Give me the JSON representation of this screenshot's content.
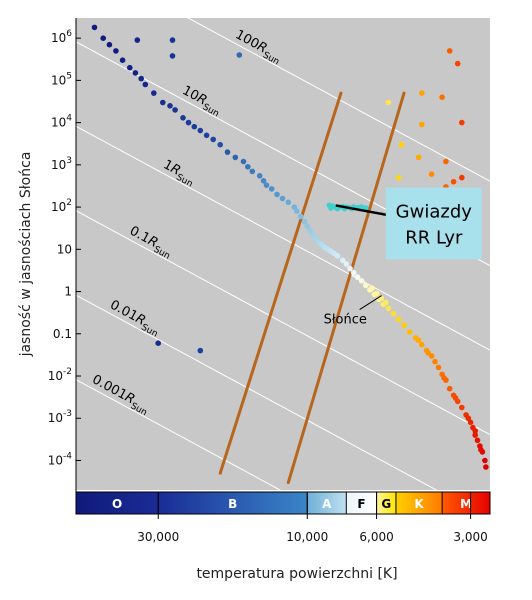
{
  "chart_data": {
    "type": "scatter",
    "title": "",
    "xlabel": "temperatura powierzchni [K]",
    "ylabel": "jasność w jasnościach Słońca",
    "x_scale": "log",
    "x_reversed": true,
    "xlim": [
      55000,
      2600
    ],
    "y_scale": "log",
    "ylim": [
      2e-05,
      3000000
    ],
    "grid": false,
    "background": "#c8c8c8",
    "x_ticks": [
      {
        "value": 30000,
        "label": "30,000"
      },
      {
        "value": 10000,
        "label": "10,000"
      },
      {
        "value": 6000,
        "label": "6,000"
      },
      {
        "value": 3000,
        "label": "3,000"
      }
    ],
    "y_ticks": [
      {
        "value": 1000000,
        "base": "10",
        "exp": "6"
      },
      {
        "value": 100000,
        "base": "10",
        "exp": "5"
      },
      {
        "value": 10000,
        "base": "10",
        "exp": "4"
      },
      {
        "value": 1000,
        "base": "10",
        "exp": "3"
      },
      {
        "value": 100,
        "base": "10",
        "exp": "2"
      },
      {
        "value": 10,
        "base": "10",
        "exp": ""
      },
      {
        "value": 1,
        "base": "1",
        "exp": ""
      },
      {
        "value": 0.1,
        "base": "0.1",
        "exp": ""
      },
      {
        "value": 0.01,
        "base": "10",
        "exp": "-2"
      },
      {
        "value": 0.001,
        "base": "10",
        "exp": "-3"
      },
      {
        "value": 0.0001,
        "base": "10",
        "exp": "-4"
      }
    ],
    "radius_lines": [
      {
        "radius": 100,
        "label_main": "100",
        "label_R": "R",
        "label_sub": "Sun"
      },
      {
        "radius": 10,
        "label_main": "10",
        "label_R": "R",
        "label_sub": "Sun"
      },
      {
        "radius": 1,
        "label_main": "1",
        "label_R": "R",
        "label_sub": "Sun"
      },
      {
        "radius": 0.1,
        "label_main": "0.1",
        "label_R": "R",
        "label_sub": "Sun"
      },
      {
        "radius": 0.01,
        "label_main": "0.01",
        "label_R": "R",
        "label_sub": "Sun"
      },
      {
        "radius": 0.001,
        "label_main": "0.001",
        "label_R": "R",
        "label_sub": "Sun"
      }
    ],
    "instability_strip": {
      "color": "#b8661d",
      "edges": [
        {
          "top": {
            "x": 7800,
            "y": 50000
          },
          "bottom": {
            "x": 19000,
            "y": 5e-05
          }
        },
        {
          "top": {
            "x": 4900,
            "y": 50000
          },
          "bottom": {
            "x": 11500,
            "y": 3e-05
          }
        }
      ]
    },
    "spectral_classes": [
      {
        "label": "O",
        "from": 55000,
        "to": 30000,
        "colors": [
          "#101a7a",
          "#1a2c96"
        ],
        "text_color": "#ffffff"
      },
      {
        "label": "B",
        "from": 30000,
        "to": 10000,
        "colors": [
          "#1a2c96",
          "#3a86c8"
        ],
        "text_color": "#ffffff"
      },
      {
        "label": "A",
        "from": 10000,
        "to": 7500,
        "colors": [
          "#6fb0d8",
          "#bfe0f0"
        ],
        "text_color": "#ffffff"
      },
      {
        "label": "F",
        "from": 7500,
        "to": 6000,
        "colors": [
          "#eef6fb",
          "#ffffff"
        ],
        "text_color": "#000000"
      },
      {
        "label": "G",
        "from": 6000,
        "to": 5200,
        "colors": [
          "#fff5a0",
          "#ffe600"
        ],
        "text_color": "#000000"
      },
      {
        "label": "K",
        "from": 5200,
        "to": 3700,
        "colors": [
          "#ffd000",
          "#ff7a00"
        ],
        "text_color": "#ffffff"
      },
      {
        "label": "M",
        "from": 3700,
        "to": 2600,
        "colors": [
          "#ff5a00",
          "#e80000"
        ],
        "text_color": "#ffffff"
      }
    ],
    "series": [
      {
        "points": [
          [
            48000,
            1800000
          ],
          [
            45000,
            1000000
          ],
          [
            43000,
            700000
          ],
          [
            41000,
            500000
          ],
          [
            39000,
            300000
          ],
          [
            37000,
            200000
          ],
          [
            35500,
            150000
          ],
          [
            34000,
            110000
          ],
          [
            33000,
            80000
          ],
          [
            31000,
            50000
          ],
          [
            29000,
            30000
          ],
          [
            27500,
            25000
          ],
          [
            26500,
            20000
          ],
          [
            25000,
            13000
          ],
          [
            24000,
            10000
          ],
          [
            23000,
            8000
          ],
          [
            22000,
            6500
          ],
          [
            21000,
            5000
          ],
          [
            20000,
            4000
          ],
          [
            19000,
            3000
          ],
          [
            18000,
            2000
          ],
          [
            17000,
            1500
          ],
          [
            16000,
            1200
          ],
          [
            15500,
            900
          ],
          [
            15000,
            700
          ],
          [
            14200,
            550
          ],
          [
            13800,
            420
          ],
          [
            13500,
            330
          ],
          [
            13000,
            270
          ],
          [
            12500,
            200
          ],
          [
            12000,
            160
          ],
          [
            11500,
            130
          ],
          [
            11000,
            100
          ],
          [
            10800,
            80
          ],
          [
            10500,
            60
          ],
          [
            10200,
            45
          ],
          [
            10000,
            35
          ],
          [
            9800,
            28
          ],
          [
            9600,
            22
          ],
          [
            9400,
            18
          ],
          [
            9200,
            15
          ],
          [
            9000,
            13
          ],
          [
            8800,
            11
          ],
          [
            8600,
            10
          ],
          [
            8400,
            9
          ],
          [
            8200,
            8
          ],
          [
            8000,
            7
          ],
          [
            7700,
            5.5
          ],
          [
            7500,
            4.5
          ],
          [
            7300,
            3.5
          ],
          [
            7100,
            2.8
          ],
          [
            6900,
            2.2
          ],
          [
            6700,
            1.8
          ],
          [
            6500,
            1.4
          ],
          [
            6300,
            1.1
          ],
          [
            6100,
            0.85
          ],
          [
            5900,
            0.65
          ],
          [
            5700,
            0.5
          ],
          [
            5500,
            0.4
          ],
          [
            5300,
            0.3
          ],
          [
            5100,
            0.22
          ],
          [
            4900,
            0.16
          ],
          [
            4700,
            0.11
          ],
          [
            4500,
            0.08
          ],
          [
            4300,
            0.055
          ],
          [
            4150,
            0.04
          ],
          [
            4000,
            0.03
          ],
          [
            3900,
            0.022
          ],
          [
            3800,
            0.016
          ],
          [
            3700,
            0.011
          ],
          [
            3600,
            0.008
          ],
          [
            3500,
            0.005
          ],
          [
            3400,
            0.0035
          ],
          [
            3300,
            0.0025
          ],
          [
            3200,
            0.0018
          ],
          [
            3100,
            0.0012
          ],
          [
            3000,
            0.0008
          ],
          [
            2950,
            0.0006
          ],
          [
            2900,
            0.0004
          ],
          [
            2850,
            0.0003
          ],
          [
            2800,
            0.00022
          ],
          [
            2750,
            0.00016
          ],
          [
            2700,
            0.0001
          ],
          [
            2680,
            7e-05
          ],
          [
            6200,
            1.2
          ],
          [
            6000,
            0.9
          ],
          [
            5800,
            0.7
          ],
          [
            5600,
            0.55
          ],
          [
            4400,
            0.07
          ],
          [
            4100,
            0.035
          ],
          [
            3650,
            0.009
          ],
          [
            3350,
            0.003
          ],
          [
            3050,
            0.001
          ],
          [
            2900,
            0.0005
          ],
          [
            2780,
            0.00018
          ]
        ]
      },
      {
        "points": [
          [
            35000,
            900000
          ],
          [
            27000,
            900000
          ],
          [
            16500,
            400000
          ],
          [
            27000,
            380000
          ],
          [
            5500,
            30000
          ],
          [
            3500,
            500000
          ],
          [
            3300,
            250000
          ],
          [
            4300,
            50000
          ],
          [
            3700,
            40000
          ],
          [
            3200,
            10000
          ],
          [
            4300,
            9000
          ],
          [
            5000,
            3000
          ],
          [
            4400,
            1500
          ],
          [
            3600,
            1200
          ],
          [
            4000,
            600
          ],
          [
            3200,
            500
          ],
          [
            5100,
            500
          ],
          [
            3400,
            400
          ],
          [
            3600,
            300
          ],
          [
            30000,
            0.06
          ],
          [
            22000,
            0.04
          ]
        ]
      },
      {
        "color": "#40d0d0",
        "points": [
          [
            8500,
            110
          ],
          [
            8300,
            105
          ],
          [
            8100,
            100
          ],
          [
            7900,
            100
          ],
          [
            7700,
            102
          ],
          [
            7500,
            100
          ],
          [
            7300,
            98
          ],
          [
            7100,
            100
          ],
          [
            6900,
            97
          ],
          [
            6700,
            100
          ],
          [
            6500,
            95
          ],
          [
            8400,
            95
          ],
          [
            8000,
            92
          ],
          [
            7600,
            92
          ],
          [
            7200,
            92
          ],
          [
            6800,
            92
          ]
        ]
      }
    ],
    "annotations": [
      {
        "text": "Słońce",
        "x": 5780,
        "y": 1
      },
      {
        "line1": "Gwiazdy",
        "line2": "RR Lyr",
        "box_color": "#a8e0ec",
        "x": 6400,
        "y": 98
      }
    ]
  }
}
